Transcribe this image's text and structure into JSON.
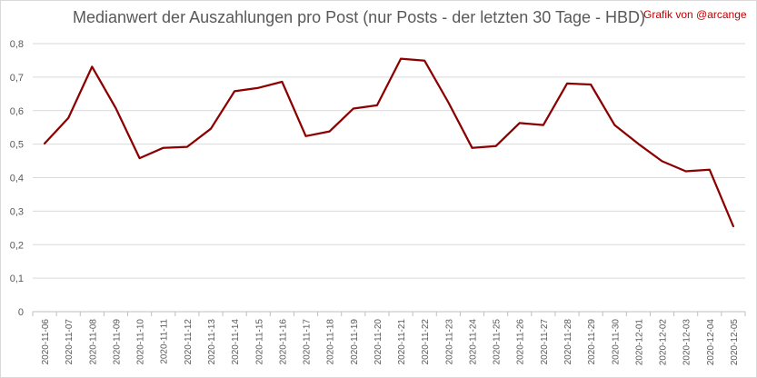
{
  "chart_data": {
    "type": "line",
    "title": "Medianwert der Auszahlungen pro Post (nur Posts - der letzten 30 Tage - HBD)",
    "credit": "Grafik von @arcange",
    "xlabel": "",
    "ylabel": "",
    "ylim": [
      0,
      0.8
    ],
    "yticks": [
      "0",
      "0,1",
      "0,2",
      "0,3",
      "0,4",
      "0,5",
      "0,6",
      "0,7",
      "0,8"
    ],
    "ytick_values": [
      0,
      0.1,
      0.2,
      0.3,
      0.4,
      0.5,
      0.6,
      0.7,
      0.8
    ],
    "grid": true,
    "legend": "none",
    "line_color": "#8b0000",
    "categories": [
      "2020-11-06",
      "2020-11-07",
      "2020-11-08",
      "2020-11-09",
      "2020-11-10",
      "2020-11-11",
      "2020-11-12",
      "2020-11-13",
      "2020-11-14",
      "2020-11-15",
      "2020-11-16",
      "2020-11-17",
      "2020-11-18",
      "2020-11-19",
      "2020-11-20",
      "2020-11-21",
      "2020-11-22",
      "2020-11-23",
      "2020-11-24",
      "2020-11-25",
      "2020-11-26",
      "2020-11-27",
      "2020-11-28",
      "2020-11-29",
      "2020-11-30",
      "2020-12-01",
      "2020-12-02",
      "2020-12-03",
      "2020-12-04",
      "2020-12-05"
    ],
    "values": [
      0.502,
      0.578,
      0.731,
      0.607,
      0.458,
      0.489,
      0.492,
      0.546,
      0.658,
      0.668,
      0.686,
      0.524,
      0.538,
      0.606,
      0.616,
      0.755,
      0.749,
      0.625,
      0.489,
      0.494,
      0.563,
      0.557,
      0.681,
      0.678,
      0.557,
      0.501,
      0.449,
      0.419,
      0.424,
      0.255
    ]
  }
}
